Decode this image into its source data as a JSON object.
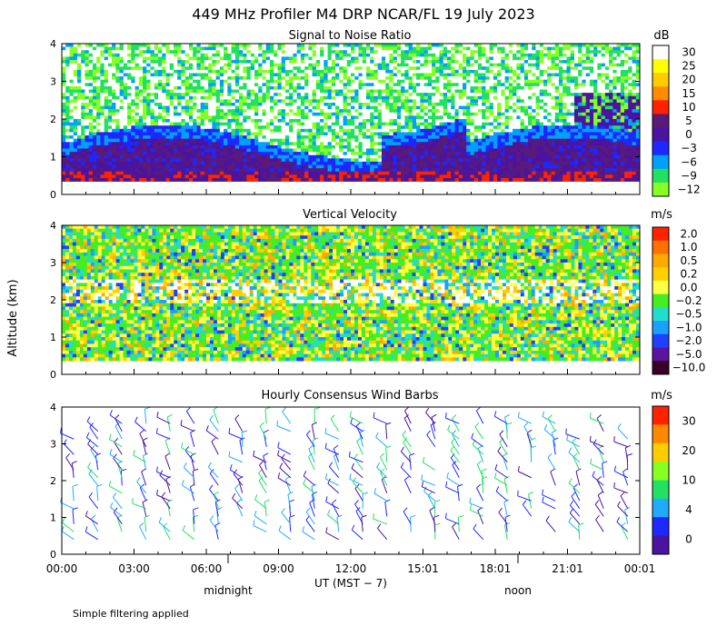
{
  "figure": {
    "title": "449 MHz Profiler M4 DRP NCAR/FL 19 July 2023",
    "ylabel": "Altitude (km)",
    "xlabel": "UT  (MST − 7)",
    "x_ticks": [
      "00:00",
      "03:00",
      "06:00",
      "09:00",
      "12:00",
      "15:01",
      "18:01",
      "21:01",
      "00:01"
    ],
    "local_time_marks": [
      "midnight",
      "noon"
    ],
    "footnote": "Simple filtering applied"
  },
  "chart_data": [
    {
      "type": "heatmap",
      "title": "Signal to Noise Ratio",
      "colorbar_unit": "dB",
      "ylim": [
        0,
        4
      ],
      "y_ticks": [
        "0",
        "1",
        "2",
        "3",
        "4"
      ],
      "colorbar_levels": [
        "30",
        "25",
        "20",
        "15",
        "10",
        "5",
        "0",
        "−3",
        "−6",
        "−9",
        "−12"
      ],
      "colorbar_colors": [
        "#ffffff",
        "#ffff00",
        "#ffcc00",
        "#ff8c00",
        "#ff2200",
        "#5a1a78",
        "#4a14a0",
        "#1c28ff",
        "#00a0ff",
        "#22e060",
        "#88ff22"
      ]
    },
    {
      "type": "heatmap",
      "title": "Vertical Velocity",
      "colorbar_unit": "m/s",
      "ylim": [
        0,
        4
      ],
      "y_ticks": [
        "0",
        "1",
        "2",
        "3",
        "4"
      ],
      "colorbar_levels": [
        "2.0",
        "1.0",
        "0.5",
        "0.2",
        "0.0",
        "−0.2",
        "−0.5",
        "−1.0",
        "−2.0",
        "−5.0",
        "−10.0"
      ],
      "colorbar_colors": [
        "#ff2200",
        "#ff7000",
        "#ffaa00",
        "#ffd000",
        "#ffff44",
        "#44ee22",
        "#22ddcc",
        "#1aa0ff",
        "#1e40ff",
        "#5a14a0",
        "#3a0028"
      ]
    },
    {
      "type": "scatter",
      "title": "Hourly Consensus Wind Barbs",
      "colorbar_unit": "m/s",
      "ylim": [
        0,
        4
      ],
      "y_ticks": [
        "0",
        "1",
        "2",
        "3",
        "4"
      ],
      "colorbar_levels": [
        "30",
        "20",
        "10",
        "4",
        "0"
      ],
      "colorbar_colors": [
        "#ff2200",
        "#ff8800",
        "#ffcc00",
        "#88ff22",
        "#22e060",
        "#22aaff",
        "#1e28ff",
        "#4a14a0"
      ]
    }
  ]
}
